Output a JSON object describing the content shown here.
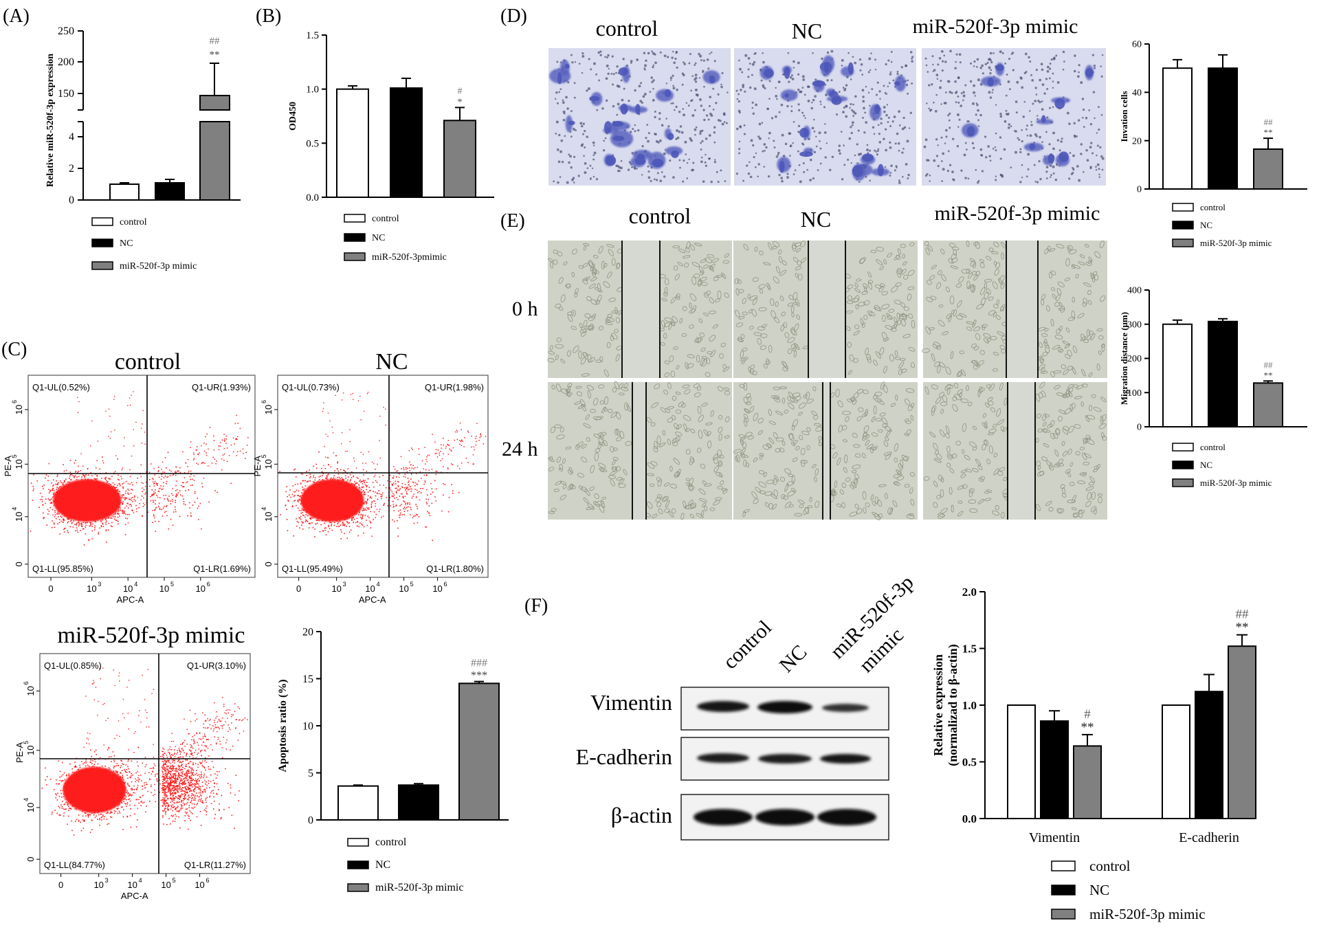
{
  "colors": {
    "control": "#ffffff",
    "nc": "#000000",
    "mimic": "#808080",
    "dot": "#ff1a1a",
    "stain": "#5a64c0"
  },
  "panels": {
    "A": {
      "letter": "(A)"
    },
    "B": {
      "letter": "(B)"
    },
    "C": {
      "letter": "(C)"
    },
    "D": {
      "letter": "(D)"
    },
    "E": {
      "letter": "(E)"
    },
    "F": {
      "letter": "(F)"
    }
  },
  "group_labels": {
    "control": "control",
    "nc": "NC",
    "mimic": "miR-520f-3p  mimic",
    "mimic_blot_line1": "miR-520f-3p",
    "mimic_blot_line2": "mimic"
  },
  "time_labels": {
    "t0": "0 h",
    "t24": "24 h"
  },
  "blot": {
    "rows": [
      "Vimentin",
      "E-cadherin",
      "β-actin"
    ]
  },
  "flow": {
    "xlabel": "APC-A",
    "ylabel": "PE-A",
    "xticks": [
      "0",
      "10",
      "10",
      "10",
      "10"
    ],
    "xexp": [
      "",
      "3",
      "4",
      "5",
      "6"
    ],
    "yticks": [
      "0",
      "10",
      "10",
      "10"
    ],
    "yexp": [
      "",
      "4",
      "5",
      "6"
    ],
    "plots": [
      {
        "title": "control",
        "ul": "Q1-UL(0.52%)",
        "ur": "Q1-UR(1.93%)",
        "ll": "Q1-LL(95.85%)",
        "lr": "Q1-LR(1.69%)"
      },
      {
        "title": "NC",
        "ul": "Q1-UL(0.73%)",
        "ur": "Q1-UR(1.98%)",
        "ll": "Q1-LL(95.49%)",
        "lr": "Q1-LR(1.80%)"
      },
      {
        "title": "miR-520f-3p  mimic",
        "ul": "Q1-UL(0.85%)",
        "ur": "Q1-UR(3.10%)",
        "ll": "Q1-LL(84.77%)",
        "lr": "Q1-LR(11.27%)"
      }
    ]
  },
  "chart_data": [
    {
      "id": "A",
      "type": "bar",
      "categories": [
        "control",
        "NC",
        "miR-520f-3p mimic"
      ],
      "values": [
        1.0,
        1.1,
        145
      ],
      "errors": [
        0.1,
        0.2,
        52
      ],
      "ylabel": "Relative miR-520f-3p expression",
      "yticks_lower": [
        "0",
        "2",
        "4"
      ],
      "yticks_upper": [
        "150",
        "200",
        "250"
      ],
      "annotations": [
        "",
        "",
        "##\n**"
      ],
      "legend": [
        "control",
        "NC",
        "miR-520f-3p mimic"
      ]
    },
    {
      "id": "B",
      "type": "bar",
      "categories": [
        "control",
        "NC",
        "miR-520f-3pmimic"
      ],
      "values": [
        1.0,
        1.01,
        0.71
      ],
      "errors": [
        0.03,
        0.09,
        0.12
      ],
      "ylabel": "OD450",
      "ylim": [
        0,
        1.5
      ],
      "yticks": [
        "0.0",
        "0.5",
        "1.0",
        "1.5"
      ],
      "annotations": [
        "",
        "",
        "#\n*"
      ],
      "legend": [
        "control",
        "NC",
        "miR-520f-3pmimic"
      ]
    },
    {
      "id": "C",
      "type": "bar",
      "categories": [
        "control",
        "NC",
        "miR-520f-3p mimic"
      ],
      "values": [
        3.6,
        3.7,
        14.5
      ],
      "errors": [
        0.1,
        0.15,
        0.2
      ],
      "ylabel": "Apoptosis ratio (%)",
      "ylim": [
        0,
        20
      ],
      "yticks": [
        "0",
        "5",
        "10",
        "15",
        "20"
      ],
      "annotations": [
        "",
        "",
        "###\n***"
      ],
      "legend": [
        "control",
        "NC",
        "miR-520f-3p mimic"
      ]
    },
    {
      "id": "D",
      "type": "bar",
      "categories": [
        "control",
        "NC",
        "miR-520f-3p mimic"
      ],
      "values": [
        50,
        50,
        16.5
      ],
      "errors": [
        3.5,
        5.5,
        4.5
      ],
      "ylabel": "Invation cells",
      "ylim": [
        0,
        60
      ],
      "yticks": [
        "0",
        "20",
        "40",
        "60"
      ],
      "annotations": [
        "",
        "",
        "##\n**"
      ],
      "legend": [
        "control",
        "NC",
        "miR-520f-3p mimic"
      ]
    },
    {
      "id": "E",
      "type": "bar",
      "categories": [
        "control",
        "NC",
        "miR-520f-3p mimic"
      ],
      "values": [
        300,
        308,
        128
      ],
      "errors": [
        12,
        8,
        6
      ],
      "ylabel": "Migration distance (μm)",
      "ylim": [
        0,
        400
      ],
      "yticks": [
        "0",
        "100",
        "200",
        "300",
        "400"
      ],
      "annotations": [
        "",
        "",
        "##\n**"
      ],
      "legend": [
        "control",
        "NC",
        "miR-520f-3p mimic"
      ]
    },
    {
      "id": "F",
      "type": "bar",
      "categories": [
        "Vimentin",
        "E-cadherin"
      ],
      "series": [
        {
          "name": "control",
          "values": [
            1.0,
            1.0
          ],
          "errors": [
            0,
            0
          ]
        },
        {
          "name": "NC",
          "values": [
            0.86,
            1.12
          ],
          "errors": [
            0.09,
            0.15
          ]
        },
        {
          "name": "miR-520f-3p mimic",
          "values": [
            0.64,
            1.52
          ],
          "errors": [
            0.1,
            0.1
          ]
        }
      ],
      "ylabel": "Relative expression",
      "ylabel2": "(normalizad to β-actin)",
      "ylim": [
        0,
        2.0
      ],
      "yticks": [
        "0.0",
        "0.5",
        "1.0",
        "1.5",
        "2.0"
      ],
      "annotations": [
        [
          "",
          "",
          "#\n**"
        ],
        [
          "",
          "",
          "##\n**"
        ]
      ],
      "legend": [
        "control",
        "NC",
        "miR-520f-3p mimic"
      ]
    }
  ]
}
